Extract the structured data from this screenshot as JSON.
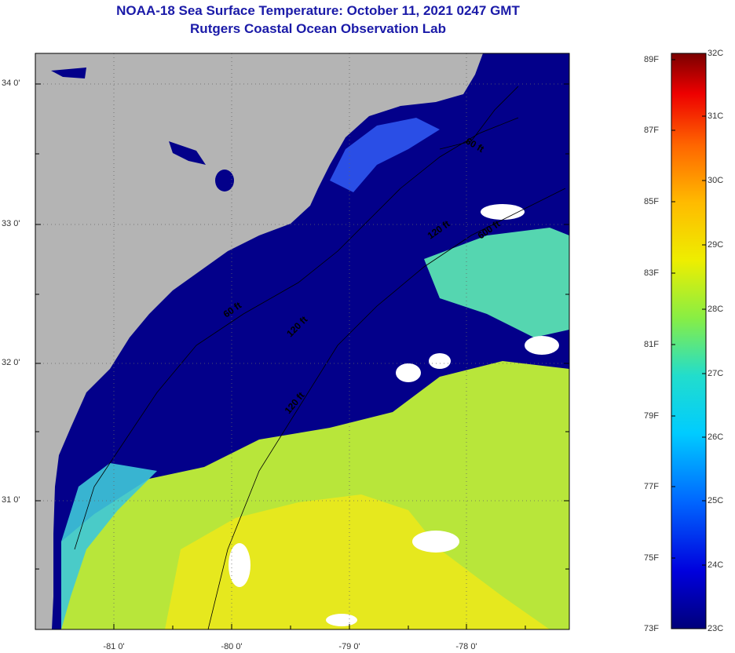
{
  "title": {
    "line1": "NOAA-18 Sea Surface Temperature:  October 11, 2021 0247 GMT",
    "line2": "Rutgers Coastal Ocean Observation Lab"
  },
  "axes": {
    "lat_labels": [
      "34 0'",
      "33 0'",
      "32 0'",
      "31 0'"
    ],
    "lon_labels": [
      "-81 0'",
      "-80 0'",
      "-79 0'",
      "-78 0'"
    ]
  },
  "contours": {
    "labels": [
      "60 ft",
      "120 ft",
      "600 ft",
      "60 ft",
      "120 ft",
      "120 ft"
    ]
  },
  "colorbar": {
    "fahrenheit": [
      "89F",
      "87F",
      "85F",
      "83F",
      "81F",
      "79F",
      "77F",
      "75F",
      "73F"
    ],
    "celsius": [
      "32C",
      "31C",
      "30C",
      "29C",
      "28C",
      "27C",
      "26C",
      "25C",
      "24C",
      "23C"
    ]
  },
  "colors": {
    "land": "#b4b4b4",
    "cold_water": "#03008a",
    "title": "#1a1aa8"
  }
}
